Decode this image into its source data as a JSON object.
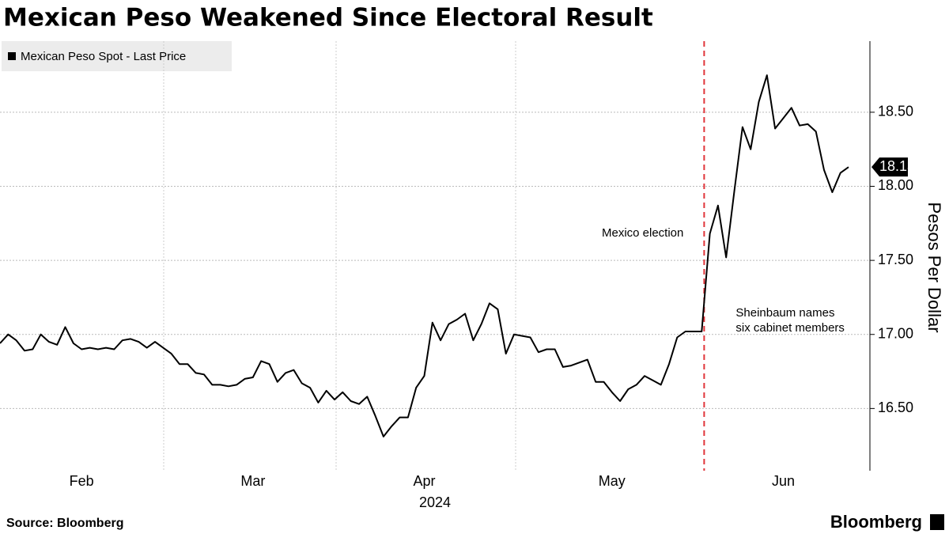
{
  "chart_data": {
    "type": "line",
    "title": "Mexican Peso Weakened Since Electoral Result",
    "source": "Source: Bloomberg",
    "brand": "Bloomberg",
    "ylabel": "Pesos Per Dollar",
    "x_year": "2024",
    "annotations": [
      "Mexico election",
      "Sheinbaum names",
      "six cabinet members"
    ],
    "legend": "top-left",
    "grid": true,
    "ylim": [
      16.08,
      18.98
    ],
    "yticks": [
      {
        "value": 16.5,
        "label": "16.50"
      },
      {
        "value": 17,
        "label": "17.00"
      },
      {
        "value": 17.5,
        "label": "17.50"
      },
      {
        "value": 18,
        "label": "18.00"
      },
      {
        "value": 18.5,
        "label": "18.50"
      }
    ],
    "categories": [
      null,
      null,
      null,
      null,
      null,
      null,
      null,
      null,
      null,
      null,
      "Feb",
      null,
      null,
      null,
      null,
      null,
      null,
      null,
      null,
      null,
      null,
      null,
      null,
      null,
      null,
      null,
      null,
      null,
      null,
      null,
      null,
      "Mar",
      null,
      null,
      null,
      null,
      null,
      null,
      null,
      null,
      null,
      null,
      null,
      null,
      null,
      null,
      null,
      null,
      null,
      null,
      null,
      null,
      "Apr",
      null,
      null,
      null,
      null,
      null,
      null,
      null,
      null,
      null,
      null,
      null,
      null,
      null,
      null,
      null,
      null,
      null,
      null,
      null,
      null,
      null,
      null,
      "May",
      null,
      null,
      null,
      null,
      null,
      null,
      null,
      null,
      null,
      null,
      null,
      null,
      null,
      null,
      null,
      null,
      null,
      null,
      null,
      null,
      "Jun",
      null,
      null,
      null,
      null,
      null,
      null,
      null,
      null
    ],
    "series": [
      {
        "name": "Mexican Peso Spot - Last Price",
        "color": "#000000",
        "values": [
          16.94,
          17.0,
          16.96,
          16.89,
          16.9,
          17.0,
          16.95,
          16.93,
          17.05,
          16.94,
          16.9,
          16.91,
          16.9,
          16.91,
          16.9,
          16.96,
          16.97,
          16.95,
          16.91,
          16.95,
          16.91,
          16.87,
          16.8,
          16.8,
          16.74,
          16.73,
          16.66,
          16.66,
          16.65,
          16.66,
          16.7,
          16.71,
          16.82,
          16.8,
          16.68,
          16.74,
          16.76,
          16.67,
          16.64,
          16.54,
          16.62,
          16.56,
          16.61,
          16.55,
          16.53,
          16.58,
          16.45,
          16.31,
          16.38,
          16.44,
          16.44,
          16.64,
          16.72,
          17.08,
          16.96,
          17.07,
          17.1,
          17.14,
          16.96,
          17.07,
          17.21,
          17.17,
          16.87,
          17.0,
          16.99,
          16.98,
          16.88,
          16.9,
          16.9,
          16.78,
          16.79,
          16.81,
          16.83,
          16.68,
          16.68,
          16.61,
          16.55,
          16.63,
          16.66,
          16.72,
          16.69,
          16.66,
          16.8,
          16.98,
          17.02,
          17.02,
          17.02,
          17.68,
          17.87,
          17.52,
          17.97,
          18.4,
          18.25,
          18.57,
          18.75,
          18.39,
          18.46,
          18.53,
          18.41,
          18.42,
          18.37,
          18.11,
          17.96,
          18.09,
          18.13
        ]
      }
    ]
  }
}
